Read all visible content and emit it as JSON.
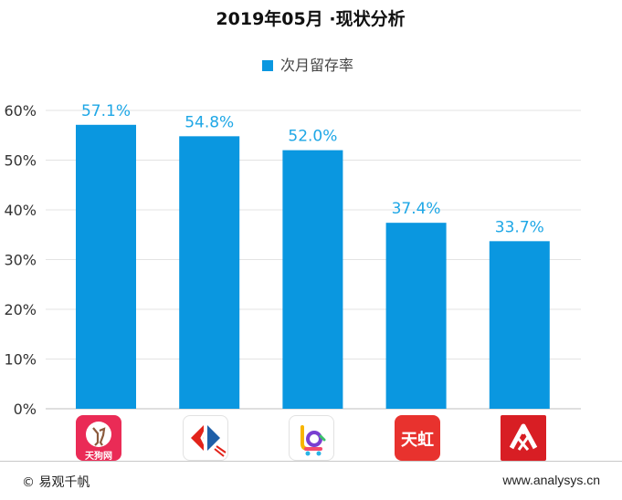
{
  "chart_data": {
    "type": "bar",
    "title": "2019年05月 ·现状分析",
    "legend": {
      "label": "次月留存率",
      "position": "top-center",
      "color": "#0a97e0"
    },
    "categories": [
      "天狗网",
      "家乐福",
      "多点",
      "天虹",
      "欧尚"
    ],
    "values": [
      57.1,
      54.8,
      52.0,
      37.4,
      33.7
    ],
    "value_labels": [
      "57.1%",
      "54.8%",
      "52.0%",
      "37.4%",
      "33.7%"
    ],
    "ylim": [
      0,
      60
    ],
    "yticks": [
      0,
      10,
      20,
      30,
      40,
      50,
      60
    ],
    "ytick_labels": [
      "0%",
      "10%",
      "20%",
      "30%",
      "40%",
      "50%",
      "60%"
    ],
    "grid": true,
    "bar_color": "#0a97e0",
    "label_color": "#1ea7e6"
  },
  "icons": [
    {
      "name": "tiangou",
      "text": "天狗网"
    },
    {
      "name": "carrefour",
      "text": ""
    },
    {
      "name": "third",
      "text": ""
    },
    {
      "name": "tianhong",
      "text": "天虹"
    },
    {
      "name": "auchan",
      "text": ""
    }
  ],
  "footer": {
    "copyright": "© 易观千帆",
    "website": "www.analysys.cn"
  }
}
